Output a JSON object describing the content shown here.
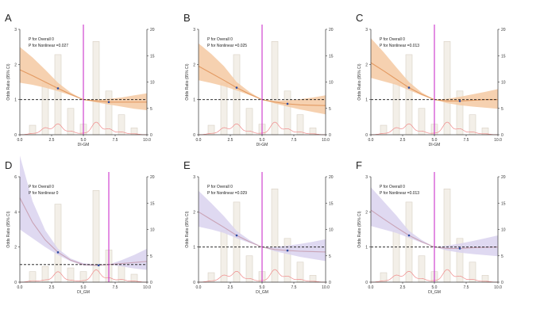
{
  "colors": {
    "orange_band": "#f5c9a2",
    "orange_line": "#e39a62",
    "purple_band": "#d9d2ee",
    "purple_line": "#c9a3b6",
    "magenta": "#cc33cc",
    "bar_fill": "#f3efe8",
    "bar_stroke": "#d8d0c4",
    "density": "#f08a8a",
    "point": "#2b4ba0"
  },
  "chart_data": [
    {
      "panel": "A",
      "type": "line",
      "theme": "orange",
      "xlabel": "DI-GM",
      "ylabel": "Odds Ratio (95% CI)",
      "xlim": [
        0,
        10
      ],
      "ylim": [
        0,
        3
      ],
      "y2lim": [
        0,
        20
      ],
      "x_ticks": [
        "0.0",
        "2.5",
        "5.0",
        "7.5",
        "10.0"
      ],
      "y_ticks": [
        "0",
        "1",
        "2",
        "3"
      ],
      "y2_ticks": [
        "0",
        "5",
        "10",
        "15",
        "20"
      ],
      "annotations": [
        "P for Overall 0",
        "P for Nonlinear =0.027"
      ],
      "reference_x": 5,
      "reference_y": 1,
      "hist": {
        "x": [
          1,
          2,
          3,
          4,
          5,
          6,
          7,
          8,
          9
        ],
        "pct": [
          1.8,
          9.8,
          15.2,
          5.0,
          2.0,
          17.7,
          8.3,
          3.8,
          1.3
        ]
      },
      "curve": {
        "x": [
          0,
          1,
          2,
          3,
          4,
          5,
          6,
          7,
          8,
          9,
          10
        ],
        "or": [
          1.85,
          1.68,
          1.5,
          1.32,
          1.15,
          1.0,
          0.96,
          0.93,
          0.93,
          0.93,
          0.93
        ],
        "lo": [
          1.48,
          1.42,
          1.34,
          1.24,
          1.12,
          1.0,
          0.92,
          0.86,
          0.8,
          0.74,
          0.7
        ],
        "hi": [
          2.5,
          2.2,
          1.85,
          1.48,
          1.2,
          1.0,
          1.0,
          1.02,
          1.06,
          1.12,
          1.18
        ]
      },
      "points": [
        {
          "x": 3,
          "y": 1.32
        },
        {
          "x": 7,
          "y": 0.93
        }
      ]
    },
    {
      "panel": "B",
      "type": "line",
      "theme": "orange",
      "xlabel": "DI-GM",
      "ylabel": "Odds Ratio (95% CI)",
      "xlim": [
        0,
        10
      ],
      "ylim": [
        0,
        3
      ],
      "y2lim": [
        0,
        20
      ],
      "x_ticks": [
        "0.0",
        "2.5",
        "5.0",
        "7.5",
        "10.0"
      ],
      "y_ticks": [
        "0",
        "1",
        "2",
        "3"
      ],
      "y2_ticks": [
        "0",
        "5",
        "10",
        "15",
        "20"
      ],
      "annotations": [
        "P for Overall 0",
        "P for Nonlinear =0.025"
      ],
      "reference_x": 5,
      "reference_y": 1,
      "hist": {
        "x": [
          1,
          2,
          3,
          4,
          5,
          6,
          7,
          8,
          9
        ],
        "pct": [
          1.8,
          9.8,
          15.2,
          5.0,
          2.0,
          17.7,
          8.3,
          3.8,
          1.3
        ]
      },
      "curve": {
        "x": [
          0,
          1,
          2,
          3,
          4,
          5,
          6,
          7,
          8,
          9,
          10
        ],
        "or": [
          1.95,
          1.75,
          1.55,
          1.34,
          1.16,
          1.0,
          0.93,
          0.88,
          0.85,
          0.84,
          0.83
        ],
        "lo": [
          1.55,
          1.47,
          1.38,
          1.26,
          1.13,
          1.0,
          0.89,
          0.8,
          0.72,
          0.65,
          0.58
        ],
        "hi": [
          2.6,
          2.3,
          1.95,
          1.5,
          1.22,
          1.0,
          0.97,
          0.98,
          1.01,
          1.06,
          1.12
        ]
      },
      "points": [
        {
          "x": 3,
          "y": 1.34
        },
        {
          "x": 7,
          "y": 0.88
        }
      ]
    },
    {
      "panel": "C",
      "type": "line",
      "theme": "orange",
      "xlabel": "DI-GM",
      "ylabel": "Odds Ratio (95% CI)",
      "xlim": [
        0,
        10
      ],
      "ylim": [
        0,
        3
      ],
      "y2lim": [
        0,
        20
      ],
      "x_ticks": [
        "0.0",
        "2.5",
        "5.0",
        "7.5",
        "10.0"
      ],
      "y_ticks": [
        "0",
        "1",
        "2",
        "3"
      ],
      "y2_ticks": [
        "0",
        "5",
        "10",
        "15",
        "20"
      ],
      "annotations": [
        "P for Overall 0",
        "P for Nonlinear =0.013"
      ],
      "reference_x": 5,
      "reference_y": 1,
      "hist": {
        "x": [
          1,
          2,
          3,
          4,
          5,
          6,
          7,
          8,
          9
        ],
        "pct": [
          1.8,
          9.8,
          15.2,
          5.0,
          2.0,
          17.7,
          8.3,
          3.8,
          1.3
        ]
      },
      "curve": {
        "x": [
          0,
          1,
          2,
          3,
          4,
          5,
          6,
          7,
          8,
          9,
          10
        ],
        "or": [
          2.05,
          1.82,
          1.58,
          1.34,
          1.15,
          1.0,
          0.96,
          0.96,
          0.98,
          1.0,
          1.0
        ],
        "lo": [
          1.62,
          1.52,
          1.42,
          1.27,
          1.12,
          1.0,
          0.9,
          0.84,
          0.8,
          0.77,
          0.74
        ],
        "hi": [
          2.75,
          2.35,
          1.92,
          1.5,
          1.2,
          1.0,
          1.02,
          1.08,
          1.15,
          1.22,
          1.3
        ]
      },
      "points": [
        {
          "x": 3,
          "y": 1.34
        },
        {
          "x": 7,
          "y": 0.96
        }
      ]
    },
    {
      "panel": "D",
      "type": "line",
      "theme": "purple",
      "xlabel": "DI_GM",
      "ylabel": "Odds Ratio (95% CI)",
      "xlim": [
        0,
        10
      ],
      "ylim": [
        0,
        6
      ],
      "y2lim": [
        0,
        20
      ],
      "x_ticks": [
        "0.0",
        "2.5",
        "5.0",
        "7.5",
        "10.0"
      ],
      "y_ticks": [
        "0",
        "2",
        "4",
        "6"
      ],
      "y2_ticks": [
        "0",
        "5",
        "10",
        "15",
        "20"
      ],
      "annotations": [
        "P for Overall 0",
        "P for Nonlinear 0"
      ],
      "reference_x": 7,
      "reference_y": 1,
      "hist": {
        "x": [
          1,
          2,
          3,
          4,
          5,
          6,
          7,
          8,
          9
        ],
        "pct": [
          2.0,
          3.0,
          14.8,
          2.7,
          2.0,
          17.4,
          6.1,
          3.8,
          1.5
        ]
      },
      "curve": {
        "x": [
          0,
          1,
          2,
          3,
          4,
          5,
          6,
          7,
          8,
          9,
          10
        ],
        "or": [
          4.8,
          3.4,
          2.4,
          1.7,
          1.25,
          1.0,
          0.96,
          1.0,
          1.06,
          1.12,
          1.18
        ],
        "lo": [
          3.0,
          2.5,
          2.0,
          1.55,
          1.18,
          0.95,
          0.92,
          1.0,
          0.9,
          0.78,
          0.7
        ],
        "hi": [
          7.2,
          4.6,
          2.95,
          1.9,
          1.35,
          1.08,
          1.0,
          1.0,
          1.25,
          1.55,
          1.9
        ]
      },
      "points": [
        {
          "x": 3,
          "y": 1.7
        },
        {
          "x": 6.2,
          "y": 0.96
        }
      ]
    },
    {
      "panel": "E",
      "type": "line",
      "theme": "purple",
      "xlabel": "DI_GM",
      "ylabel": "Odds Ratio (95% CI)",
      "xlim": [
        0,
        10
      ],
      "ylim": [
        0,
        3
      ],
      "y2lim": [
        0,
        20
      ],
      "x_ticks": [
        "0.0",
        "2.5",
        "5.0",
        "7.5",
        "10.0"
      ],
      "y_ticks": [
        "0",
        "1",
        "2",
        "3"
      ],
      "y2_ticks": [
        "0",
        "5",
        "10",
        "15",
        "20"
      ],
      "annotations": [
        "P for Overall 0",
        "P for Nonlinear =0.029"
      ],
      "reference_x": 5,
      "reference_y": 1,
      "hist": {
        "x": [
          1,
          2,
          3,
          4,
          5,
          6,
          7,
          8,
          9
        ],
        "pct": [
          1.8,
          9.8,
          15.2,
          5.0,
          2.0,
          17.7,
          8.3,
          3.8,
          1.3
        ]
      },
      "curve": {
        "x": [
          0,
          1,
          2,
          3,
          4,
          5,
          6,
          7,
          8,
          9,
          10
        ],
        "or": [
          2.0,
          1.78,
          1.56,
          1.33,
          1.15,
          1.0,
          0.93,
          0.9,
          0.88,
          0.87,
          0.86
        ],
        "lo": [
          1.58,
          1.5,
          1.4,
          1.25,
          1.12,
          1.0,
          0.88,
          0.8,
          0.72,
          0.66,
          0.6
        ],
        "hi": [
          2.6,
          2.25,
          1.88,
          1.46,
          1.2,
          1.0,
          1.0,
          1.04,
          1.09,
          1.15,
          1.22
        ]
      },
      "points": [
        {
          "x": 3,
          "y": 1.33
        },
        {
          "x": 7,
          "y": 0.9
        }
      ]
    },
    {
      "panel": "F",
      "type": "line",
      "theme": "purple",
      "xlabel": "DI_GM",
      "ylabel": "Odds Ratio (95% CI)",
      "xlim": [
        0,
        10
      ],
      "ylim": [
        0,
        3
      ],
      "y2lim": [
        0,
        20
      ],
      "x_ticks": [
        "0.0",
        "2.5",
        "5.0",
        "7.5",
        "10.0"
      ],
      "y_ticks": [
        "0",
        "1",
        "2",
        "3"
      ],
      "y2_ticks": [
        "0",
        "5",
        "10",
        "15",
        "20"
      ],
      "annotations": [
        "P for Overall 0",
        "P for Nonlinear =0.013"
      ],
      "reference_x": 5,
      "reference_y": 1,
      "hist": {
        "x": [
          1,
          2,
          3,
          4,
          5,
          6,
          7,
          8,
          9
        ],
        "pct": [
          1.8,
          9.8,
          15.2,
          5.0,
          2.0,
          17.7,
          8.3,
          3.8,
          1.3
        ]
      },
      "curve": {
        "x": [
          0,
          1,
          2,
          3,
          4,
          5,
          6,
          7,
          8,
          9,
          10
        ],
        "or": [
          2.05,
          1.8,
          1.56,
          1.33,
          1.15,
          1.0,
          0.96,
          0.96,
          0.98,
          0.99,
          1.0
        ],
        "lo": [
          1.6,
          1.5,
          1.4,
          1.26,
          1.12,
          1.0,
          0.9,
          0.84,
          0.8,
          0.77,
          0.74
        ],
        "hi": [
          2.7,
          2.3,
          1.9,
          1.46,
          1.2,
          1.0,
          1.04,
          1.1,
          1.17,
          1.25,
          1.33
        ]
      },
      "points": [
        {
          "x": 3,
          "y": 1.33
        },
        {
          "x": 7,
          "y": 0.96
        }
      ]
    }
  ]
}
